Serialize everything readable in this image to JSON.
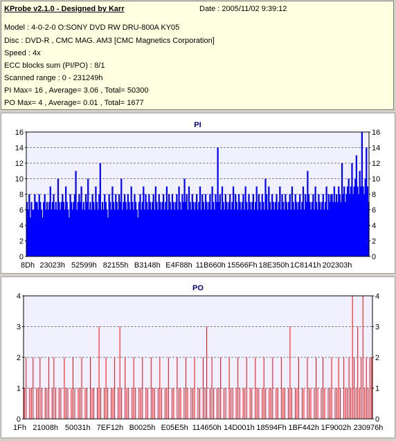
{
  "header": {
    "title": "KProbe v2.1.0 - Designed by Karr",
    "date": "Date : 2005/11/02 9:39:12",
    "lines": [
      "Model : 4-0-2-0 O:SONY    DVD RW DRU-800A  KY05",
      "Disc : DVD-R , CMC MAG. AM3 [CMC Magnetics Corporation]",
      "Speed : 4x",
      "ECC blocks sum (PI/PO) : 8/1",
      "Scanned range : 0 - 231249h",
      "PI Max= 16 , Average= 3.06 , Total= 50300",
      "PO Max= 4 , Average= 0.01 , Total= 1677"
    ]
  },
  "colors": {
    "pi_bar": "#0000ff",
    "po_bar": "#ff0000",
    "plot_bg": "#f0f0ff",
    "title_text": "#000080"
  },
  "chart_data": [
    {
      "type": "bar",
      "title": "PI",
      "ylim": [
        0,
        16
      ],
      "yticks": [
        0,
        2,
        4,
        6,
        8,
        10,
        12,
        14,
        16
      ],
      "xtick_labels": [
        "8Dh",
        "23023h",
        "52599h",
        "82155h",
        "B3148h",
        "E4F88h",
        "11B660h",
        "15566Fh",
        "18E350h",
        "1C8141h",
        "202303h"
      ],
      "grid": true,
      "color": "#0000ff",
      "values": [
        7,
        6,
        8,
        5,
        7,
        6,
        6,
        8,
        7,
        7,
        6,
        8,
        7,
        6,
        5,
        7,
        8,
        6,
        7,
        6,
        7,
        9,
        6,
        7,
        8,
        6,
        7,
        6,
        10,
        7,
        6,
        7,
        8,
        7,
        6,
        9,
        7,
        6,
        5,
        8,
        7,
        6,
        7,
        8,
        11,
        6,
        7,
        8,
        7,
        9,
        6,
        7,
        6,
        8,
        7,
        10,
        6,
        7,
        6,
        8,
        7,
        6,
        9,
        7,
        6,
        8,
        12,
        6,
        7,
        6,
        8,
        7,
        6,
        5,
        8,
        7,
        6,
        9,
        7,
        6,
        8,
        7,
        6,
        8,
        7,
        10,
        6,
        7,
        8,
        7,
        6,
        8,
        7,
        6,
        9,
        7,
        6,
        8,
        7,
        6,
        5,
        7,
        8,
        6,
        7,
        9,
        6,
        8,
        7,
        6,
        8,
        7,
        6,
        7,
        8,
        6,
        9,
        7,
        6,
        8,
        7,
        6,
        7,
        8,
        6,
        7,
        9,
        6,
        8,
        7,
        6,
        8,
        7,
        6,
        7,
        8,
        6,
        9,
        7,
        6,
        8,
        7,
        10,
        7,
        8,
        6,
        9,
        7,
        6,
        8,
        7,
        6,
        7,
        8,
        6,
        7,
        9,
        6,
        8,
        7,
        6,
        8,
        7,
        6,
        7,
        8,
        6,
        9,
        7,
        6,
        8,
        7,
        14,
        7,
        8,
        6,
        9,
        7,
        6,
        8,
        7,
        6,
        7,
        8,
        6,
        7,
        9,
        6,
        8,
        7,
        6,
        8,
        7,
        6,
        7,
        8,
        6,
        9,
        7,
        6,
        8,
        7,
        6,
        7,
        8,
        6,
        7,
        9,
        6,
        8,
        7,
        6,
        8,
        7,
        6,
        10,
        8,
        6,
        9,
        7,
        6,
        8,
        7,
        6,
        7,
        8,
        6,
        7,
        9,
        6,
        8,
        7,
        6,
        8,
        7,
        6,
        7,
        8,
        6,
        9,
        7,
        6,
        8,
        7,
        6,
        7,
        8,
        6,
        7,
        9,
        6,
        8,
        7,
        11,
        8,
        7,
        6,
        7,
        8,
        6,
        9,
        7,
        6,
        8,
        7,
        6,
        7,
        8,
        6,
        7,
        9,
        6,
        8,
        7,
        8,
        8,
        7,
        9,
        7,
        8,
        7,
        9,
        8,
        7,
        12,
        8,
        9,
        7,
        8,
        9,
        10,
        8,
        9,
        12,
        8,
        9,
        10,
        13,
        9,
        8,
        11,
        9,
        16,
        9,
        8,
        10,
        14,
        9,
        7
      ]
    },
    {
      "type": "bar",
      "title": "PO",
      "ylim": [
        0,
        4
      ],
      "yticks": [
        0,
        1,
        2,
        3,
        4
      ],
      "xtick_labels": [
        "1Fh",
        "21008h",
        "50031h",
        "7EF12h",
        "B0025h",
        "E05E5h",
        "114650h",
        "14D001h",
        "18594Fh",
        "1BF442h",
        "1F9002h",
        "230976h"
      ],
      "grid": true,
      "color": "#ff0000",
      "values": [
        1,
        2,
        0,
        1,
        1,
        2,
        0,
        1,
        1,
        2,
        1,
        0,
        1,
        1,
        2,
        0,
        1,
        2,
        1,
        0,
        1,
        1,
        0,
        2,
        1,
        1,
        0,
        1,
        2,
        1,
        0,
        1,
        1,
        2,
        0,
        1,
        1,
        0,
        2,
        1,
        1,
        0,
        1,
        3,
        1,
        0,
        1,
        2,
        1,
        0,
        1,
        1,
        2,
        0,
        1,
        3,
        1,
        0,
        2,
        1,
        1,
        0,
        1,
        2,
        1,
        0,
        1,
        1,
        2,
        0,
        1,
        1,
        0,
        2,
        1,
        1,
        0,
        1,
        2,
        1,
        0,
        1,
        1,
        2,
        0,
        1,
        1,
        0,
        2,
        1,
        1,
        0,
        1,
        2,
        1,
        0,
        1,
        1,
        2,
        0,
        1,
        1,
        0,
        2,
        1,
        3,
        0,
        1,
        2,
        1,
        0,
        1,
        1,
        2,
        0,
        1,
        1,
        0,
        2,
        1,
        1,
        0,
        1,
        2,
        1,
        0,
        1,
        1,
        2,
        0,
        1,
        1,
        0,
        2,
        1,
        1,
        0,
        1,
        2,
        1,
        0,
        1,
        1,
        2,
        0,
        1,
        1,
        0,
        2,
        1,
        1,
        0,
        1,
        3,
        1,
        0,
        1,
        1,
        2,
        0,
        1,
        1,
        0,
        2,
        1,
        1,
        0,
        1,
        2,
        1,
        0,
        1,
        2,
        1,
        0,
        1,
        1,
        2,
        0,
        1,
        1,
        2,
        1,
        0,
        2,
        1,
        1,
        2,
        1,
        4,
        2,
        1,
        3,
        1,
        2,
        4,
        1,
        2,
        1,
        2,
        2
      ]
    }
  ]
}
